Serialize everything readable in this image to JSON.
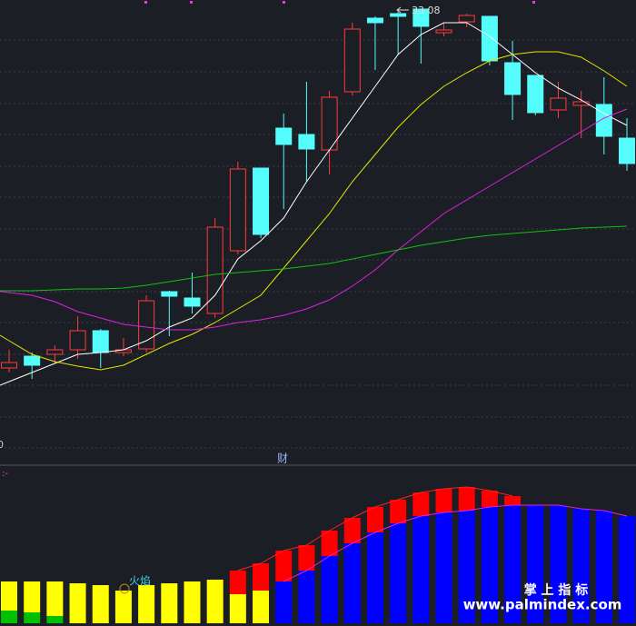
{
  "chart_data": [
    {
      "type": "candlestick",
      "ylim": [
        23.28,
        33.28
      ],
      "up_color": "#ff3c3c",
      "down_color": "#54fcfc",
      "open": [
        25.18,
        25.44,
        25.48,
        25.58,
        26.0,
        25.52,
        25.6,
        26.86,
        26.72,
        26.38,
        27.76,
        29.58,
        30.46,
        30.32,
        29.98,
        31.26,
        32.88,
        32.98,
        33.08,
        32.56,
        32.8,
        32.92,
        31.9,
        31.62,
        30.86,
        30.96,
        30.98,
        30.24
      ],
      "high": [
        25.58,
        25.52,
        25.68,
        26.32,
        26.04,
        25.84,
        26.78,
        26.88,
        27.28,
        28.48,
        29.72,
        29.58,
        30.78,
        31.48,
        31.28,
        32.78,
        32.92,
        33.02,
        33.08,
        32.78,
        32.98,
        32.92,
        32.38,
        31.62,
        31.48,
        31.28,
        31.58,
        30.68
      ],
      "low": [
        25.08,
        24.94,
        25.28,
        25.38,
        25.18,
        25.44,
        25.52,
        25.88,
        26.38,
        26.28,
        27.68,
        28.04,
        28.68,
        29.28,
        29.44,
        31.18,
        31.74,
        32.08,
        31.88,
        32.48,
        32.68,
        31.84,
        30.64,
        30.74,
        30.68,
        30.24,
        29.88,
        29.52
      ],
      "close": [
        25.3,
        25.24,
        25.58,
        26.0,
        25.52,
        25.58,
        26.66,
        26.76,
        26.54,
        28.28,
        29.56,
        28.12,
        30.1,
        30.0,
        31.14,
        32.64,
        32.78,
        32.92,
        32.7,
        32.62,
        32.94,
        31.94,
        31.2,
        30.8,
        31.12,
        31.04,
        30.28,
        29.68
      ],
      "series": [
        {
          "color": "#ffffff",
          "values": [
            24.88,
            25.08,
            25.28,
            25.48,
            25.52,
            25.58,
            25.78,
            26.08,
            26.28,
            26.78,
            27.58,
            27.98,
            28.48,
            29.28,
            29.98,
            30.68,
            31.38,
            32.08,
            32.52,
            32.78,
            32.78,
            32.48,
            32.08,
            31.68,
            31.34,
            31.08,
            30.78,
            30.52
          ]
        },
        {
          "color": "#e6e600",
          "values": [
            25.78,
            25.48,
            25.32,
            25.22,
            25.14,
            25.24,
            25.48,
            25.72,
            25.92,
            26.18,
            26.48,
            26.78,
            27.38,
            27.98,
            28.58,
            29.28,
            29.88,
            30.48,
            30.98,
            31.38,
            31.68,
            31.94,
            32.08,
            32.14,
            32.14,
            32.02,
            31.72,
            31.38
          ]
        },
        {
          "color": "#e020e0",
          "values": [
            26.84,
            26.78,
            26.64,
            26.42,
            26.28,
            26.14,
            26.08,
            26.02,
            26.02,
            26.08,
            26.18,
            26.24,
            26.34,
            26.48,
            26.68,
            26.98,
            27.34,
            27.78,
            28.18,
            28.58,
            28.88,
            29.18,
            29.48,
            29.78,
            30.08,
            30.38,
            30.68,
            30.88
          ]
        },
        {
          "color": "#10c010",
          "values": [
            26.88,
            26.88,
            26.9,
            26.92,
            26.92,
            26.94,
            27.0,
            27.08,
            27.16,
            27.24,
            27.28,
            27.32,
            27.36,
            27.42,
            27.48,
            27.58,
            27.68,
            27.78,
            27.88,
            27.96,
            28.04,
            28.1,
            28.14,
            28.18,
            28.22,
            28.26,
            28.28,
            28.3
          ]
        }
      ],
      "high_label": "33.08",
      "edge_label": "0",
      "center_label": "财"
    },
    {
      "type": "bar",
      "stacked": true,
      "ylim": [
        0,
        170
      ],
      "series": [
        {
          "color": "#00c000",
          "values": [
            14,
            12,
            8,
            null,
            null,
            null,
            null,
            null,
            null,
            null,
            null,
            null,
            null,
            null,
            null,
            null,
            null,
            null,
            null,
            null,
            null,
            null,
            null,
            null,
            null,
            null,
            null,
            null
          ]
        },
        {
          "color": "#ffff00",
          "values": [
            32,
            34,
            38,
            44,
            42,
            36,
            42,
            44,
            46,
            48,
            32,
            36,
            null,
            null,
            null,
            null,
            null,
            null,
            null,
            null,
            null,
            null,
            null,
            null,
            null,
            null,
            null,
            null
          ]
        },
        {
          "color": "#0000ff",
          "values": [
            null,
            null,
            null,
            null,
            null,
            null,
            null,
            null,
            null,
            null,
            null,
            null,
            46,
            58,
            74,
            88,
            100,
            110,
            118,
            122,
            124,
            128,
            130,
            130,
            130,
            126,
            124,
            118
          ]
        },
        {
          "color": "#ff0000",
          "values": [
            null,
            null,
            null,
            null,
            null,
            null,
            null,
            null,
            null,
            null,
            26,
            30,
            34,
            28,
            28,
            28,
            28,
            26,
            26,
            26,
            26,
            18,
            10,
            null,
            null,
            null,
            null,
            null
          ]
        }
      ],
      "lines": [
        {
          "color": "#ff2020",
          "of": 3
        },
        {
          "color": "#e020e0",
          "of": 2
        }
      ],
      "tag": ":-",
      "label": "火焰"
    }
  ],
  "watermark": {
    "title": "掌 上 指 标",
    "url": "www.palmindex.com"
  }
}
